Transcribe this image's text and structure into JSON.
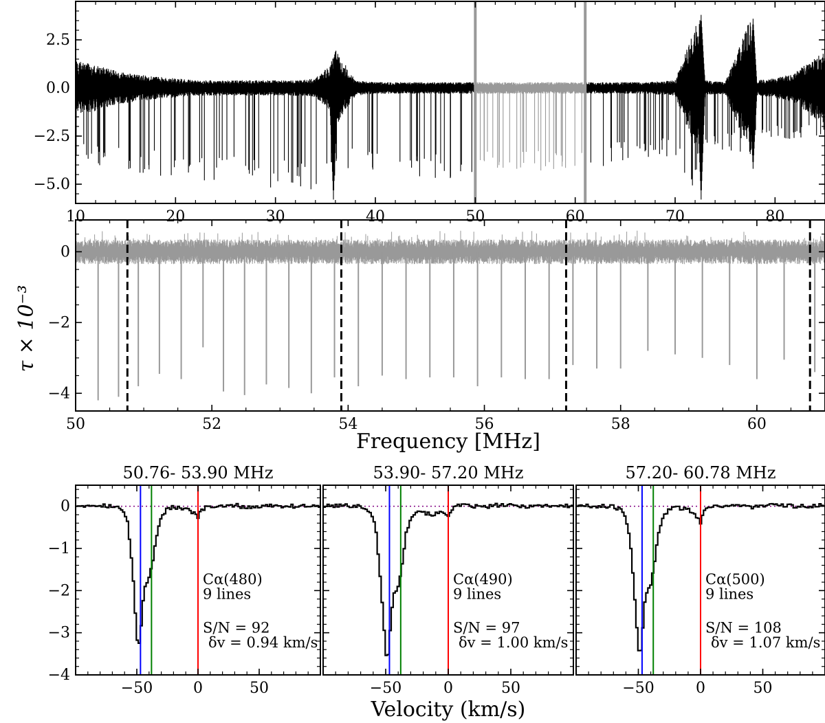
{
  "figure": {
    "ylabel": "τ × 10⁻³",
    "frequency_xlabel": "Frequency [MHz]",
    "velocity_xlabel": "Velocity (km/s)"
  },
  "chart_data": [
    {
      "id": "top",
      "type": "line",
      "xlim": [
        10,
        85
      ],
      "ylim": [
        -6,
        4.5
      ],
      "xticks": [
        10,
        20,
        30,
        40,
        50,
        60,
        70,
        80
      ],
      "xtick_labels": [
        "10",
        "20",
        "30",
        "40",
        "50",
        "60",
        "70",
        "80"
      ],
      "yticks": [
        2.5,
        0.0,
        -2.5,
        -5.0
      ],
      "ytick_labels": [
        "2.5",
        "0.0",
        "−2.5",
        "−5.0"
      ],
      "highlight_range": [
        50,
        61
      ],
      "series": [
        {
          "color": "#000000",
          "x": [
            10,
            12,
            14,
            16,
            18,
            20,
            22,
            24,
            26,
            28,
            30,
            32,
            34,
            35.5,
            36,
            38,
            40,
            42,
            44,
            46,
            48,
            50
          ],
          "y_upper": [
            1.4,
            1.2,
            0.9,
            0.7,
            0.6,
            0.5,
            0.4,
            0.4,
            0.4,
            0.4,
            0.4,
            0.4,
            0.5,
            1.2,
            2.0,
            0.4,
            0.3,
            0.3,
            0.3,
            0.3,
            0.3,
            0.3
          ],
          "y_lower": [
            -3.5,
            -4.0,
            -4.2,
            -4.4,
            -4.6,
            -4.7,
            -4.8,
            -4.9,
            -5.0,
            -5.1,
            -5.2,
            -5.3,
            -5.4,
            -5.5,
            -4.5,
            -4.2,
            -4.4,
            -4.6,
            -4.8,
            -4.9,
            -5.0,
            -5.0
          ]
        },
        {
          "color": "#999999",
          "x": [
            50,
            52,
            54,
            56,
            58,
            60,
            61
          ],
          "y_upper": [
            0.3,
            0.3,
            0.3,
            0.3,
            0.3,
            0.3,
            0.3
          ],
          "y_lower": [
            -4.2,
            -4.3,
            -4.4,
            -4.5,
            -4.5,
            -4.6,
            -4.6
          ]
        },
        {
          "color": "#000000",
          "x": [
            61,
            64,
            67,
            70,
            72.5,
            73,
            75,
            77.5,
            78,
            80,
            82,
            85
          ],
          "y_upper": [
            0.3,
            0.3,
            0.3,
            0.4,
            3.8,
            0.4,
            0.3,
            3.6,
            0.4,
            0.5,
            0.8,
            2.0
          ],
          "y_lower": [
            -4.3,
            -4.0,
            -3.8,
            -3.6,
            -5.8,
            -3.4,
            -3.2,
            -3.5,
            -3.0,
            -2.8,
            -2.7,
            -2.4
          ]
        }
      ],
      "spikes": [
        {
          "x": 35.8,
          "top": 1.0,
          "bottom": -5.8
        },
        {
          "x": 72.6,
          "top": 3.8,
          "bottom": -5.8
        },
        {
          "x": 77.8,
          "top": 3.6,
          "bottom": -4.2
        }
      ],
      "markers": [
        {
          "x": 50,
          "color": "#999999"
        },
        {
          "x": 61,
          "color": "#999999"
        }
      ]
    },
    {
      "id": "middle",
      "type": "line",
      "xlim": [
        50,
        61
      ],
      "ylim": [
        -4.5,
        0.9
      ],
      "xticks": [
        50,
        52,
        54,
        56,
        58,
        60
      ],
      "xtick_labels": [
        "50",
        "52",
        "54",
        "56",
        "58",
        "60"
      ],
      "yticks": [
        0,
        -2,
        -4
      ],
      "ytick_labels": [
        "0",
        "−2",
        "−4"
      ],
      "noise_level": [
        -0.35,
        0.35
      ],
      "lines": [
        {
          "x": 50.33,
          "depth": -4.2
        },
        {
          "x": 50.63,
          "depth": -4.1
        },
        {
          "x": 50.92,
          "depth": -3.8
        },
        {
          "x": 51.23,
          "depth": -3.45
        },
        {
          "x": 51.55,
          "depth": -3.6
        },
        {
          "x": 51.87,
          "depth": -2.7
        },
        {
          "x": 52.17,
          "depth": -3.95
        },
        {
          "x": 52.48,
          "depth": -4.05
        },
        {
          "x": 52.8,
          "depth": -3.75
        },
        {
          "x": 53.13,
          "depth": -3.85
        },
        {
          "x": 53.46,
          "depth": -4.0
        },
        {
          "x": 53.8,
          "depth": -3.55
        },
        {
          "x": 54.15,
          "depth": -3.8
        },
        {
          "x": 54.5,
          "depth": -3.5
        },
        {
          "x": 54.85,
          "depth": -3.6
        },
        {
          "x": 55.2,
          "depth": -3.55
        },
        {
          "x": 55.55,
          "depth": -3.55
        },
        {
          "x": 55.9,
          "depth": -3.8
        },
        {
          "x": 56.25,
          "depth": -3.55
        },
        {
          "x": 56.6,
          "depth": -3.6
        },
        {
          "x": 56.95,
          "depth": -3.6
        },
        {
          "x": 57.3,
          "depth": -3.2
        },
        {
          "x": 57.65,
          "depth": -3.3
        },
        {
          "x": 58.0,
          "depth": -3.3
        },
        {
          "x": 58.4,
          "depth": -2.8
        },
        {
          "x": 58.8,
          "depth": -2.9
        },
        {
          "x": 59.2,
          "depth": -3.0
        },
        {
          "x": 59.6,
          "depth": -3.2
        },
        {
          "x": 60.0,
          "depth": -3.6
        },
        {
          "x": 60.4,
          "depth": -3.05
        },
        {
          "x": 60.85,
          "depth": -3.4
        }
      ],
      "dashed_boundaries": [
        50.76,
        53.9,
        57.2,
        60.78
      ]
    },
    {
      "id": "stack-480",
      "type": "line",
      "title": "50.76- 53.90 MHz",
      "xlim": [
        -100,
        100
      ],
      "ylim": [
        -4,
        0.5
      ],
      "xticks": [
        -50,
        0,
        50
      ],
      "xtick_labels": [
        "−50",
        "0",
        "50"
      ],
      "yticks": [
        0,
        -1,
        -2,
        -3,
        -4
      ],
      "ytick_labels": [
        "0",
        "−1",
        "−2",
        "−3",
        "−4"
      ],
      "x": [
        -100,
        -80,
        -70,
        -63,
        -58,
        -55,
        -52,
        -50,
        -48.5,
        -47,
        -45,
        -43,
        -41,
        -39,
        -37,
        -34,
        -30,
        -25,
        -20,
        -15,
        -10,
        -5,
        -2,
        0,
        2,
        5,
        10,
        20,
        30,
        40,
        60,
        80,
        100
      ],
      "y": [
        0.02,
        0.03,
        0.0,
        -0.05,
        -0.3,
        -1.0,
        -2.1,
        -3.1,
        -3.4,
        -3.0,
        -2.3,
        -1.9,
        -1.75,
        -1.6,
        -1.3,
        -0.7,
        -0.25,
        -0.05,
        -0.02,
        -0.05,
        -0.08,
        -0.12,
        -0.2,
        -0.25,
        -0.15,
        -0.05,
        0.0,
        -0.02,
        0.03,
        -0.03,
        0.02,
        0.0,
        0.02
      ],
      "vlines": [
        {
          "x": -47,
          "color": "#0000ff"
        },
        {
          "x": -38,
          "color": "#008000"
        },
        {
          "x": 0,
          "color": "#ff0000"
        }
      ],
      "zero_line_color": "#800080",
      "annotations": {
        "transition": "Cα(480)",
        "nlines": "9 lines",
        "snr": "S/N = 92",
        "resolution": "δv = 0.94 km/s"
      }
    },
    {
      "id": "stack-490",
      "type": "line",
      "title": "53.90- 57.20 MHz",
      "xlim": [
        -100,
        100
      ],
      "ylim": [
        -4,
        0.5
      ],
      "xticks": [
        -50,
        0,
        50
      ],
      "xtick_labels": [
        "−50",
        "0",
        "50"
      ],
      "yticks": [
        0,
        -1,
        -2,
        -3,
        -4
      ],
      "ytick_labels": [
        "",
        "",
        "",
        "",
        ""
      ],
      "x": [
        -100,
        -80,
        -70,
        -63,
        -58,
        -55,
        -52,
        -50,
        -48.5,
        -47,
        -45,
        -43,
        -41,
        -39,
        -37,
        -34,
        -30,
        -25,
        -20,
        -15,
        -10,
        -5,
        -2,
        0,
        2,
        5,
        10,
        20,
        30,
        40,
        60,
        80,
        100
      ],
      "y": [
        0.0,
        0.02,
        0.0,
        -0.1,
        -0.5,
        -1.4,
        -2.6,
        -3.5,
        -3.7,
        -3.2,
        -2.4,
        -2.05,
        -1.95,
        -1.8,
        -1.4,
        -0.7,
        -0.25,
        -0.1,
        -0.12,
        -0.2,
        -0.18,
        -0.15,
        -0.18,
        -0.2,
        -0.1,
        -0.02,
        0.02,
        0.0,
        -0.02,
        0.03,
        0.0,
        0.02,
        0.0
      ],
      "vlines": [
        {
          "x": -47,
          "color": "#0000ff"
        },
        {
          "x": -38,
          "color": "#008000"
        },
        {
          "x": 0,
          "color": "#ff0000"
        }
      ],
      "zero_line_color": "#800080",
      "annotations": {
        "transition": "Cα(490)",
        "nlines": "9 lines",
        "snr": "S/N = 97",
        "resolution": "δv = 1.00 km/s"
      }
    },
    {
      "id": "stack-500",
      "type": "line",
      "title": "57.20- 60.78 MHz",
      "xlim": [
        -100,
        100
      ],
      "ylim": [
        -4,
        0.5
      ],
      "xticks": [
        -50,
        0,
        50
      ],
      "xtick_labels": [
        "−50",
        "0",
        "50"
      ],
      "yticks": [
        0,
        -1,
        -2,
        -3,
        -4
      ],
      "ytick_labels": [
        "",
        "",
        "",
        "",
        ""
      ],
      "x": [
        -100,
        -80,
        -70,
        -63,
        -58,
        -55,
        -52,
        -50,
        -48.5,
        -47,
        -45,
        -43,
        -41,
        -39,
        -37,
        -34,
        -30,
        -25,
        -20,
        -15,
        -10,
        -5,
        -2,
        0,
        2,
        5,
        10,
        20,
        30,
        40,
        60,
        80,
        100
      ],
      "y": [
        0.02,
        0.0,
        0.0,
        -0.1,
        -0.5,
        -1.3,
        -2.5,
        -3.4,
        -3.6,
        -3.1,
        -2.3,
        -2.05,
        -1.95,
        -1.7,
        -1.35,
        -0.7,
        -0.25,
        -0.05,
        -0.02,
        -0.05,
        -0.08,
        -0.15,
        -0.3,
        -0.38,
        -0.15,
        -0.03,
        0.02,
        0.0,
        0.03,
        -0.02,
        0.02,
        0.0,
        0.02
      ],
      "vlines": [
        {
          "x": -47,
          "color": "#0000ff"
        },
        {
          "x": -38,
          "color": "#008000"
        },
        {
          "x": 0,
          "color": "#ff0000"
        }
      ],
      "zero_line_color": "#800080",
      "annotations": {
        "transition": "Cα(500)",
        "nlines": "9 lines",
        "snr": "S/N = 108",
        "resolution": "δv = 1.07 km/s"
      }
    }
  ]
}
